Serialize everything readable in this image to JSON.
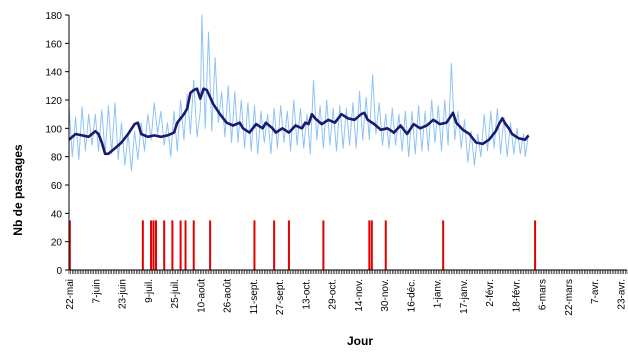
{
  "chart_data": {
    "type": "line",
    "xlabel": "Jour",
    "ylabel": "Nb de passages",
    "ylim": [
      0,
      180
    ],
    "y_ticks": [
      0,
      20,
      40,
      60,
      80,
      100,
      120,
      140,
      160,
      180
    ],
    "grid": false,
    "legend": "none",
    "x_tick_labels": [
      "22-mai",
      "7-juin",
      "23-juin",
      "9-juil.",
      "25-juil.",
      "10-août",
      "26-août",
      "11-sept.",
      "27-sept.",
      "13-oct.",
      "29-oct.",
      "14-nov.",
      "30-nov.",
      "16-déc.",
      "1-janv.",
      "17-janv.",
      "2-févr.",
      "18-févr.",
      "6-mars",
      "22-mars",
      "7-avr.",
      "23-avr."
    ],
    "colors": {
      "daily": "#8fc3f5",
      "smoothed": "#1a1a6e",
      "events": "#e00000"
    },
    "series": [
      {
        "role": "daily",
        "points": [
          [
            0,
            116
          ],
          [
            2,
            80
          ],
          [
            4,
            108
          ],
          [
            6,
            78
          ],
          [
            8,
            115
          ],
          [
            10,
            84
          ],
          [
            12,
            110
          ],
          [
            14,
            88
          ],
          [
            16,
            110
          ],
          [
            18,
            84
          ],
          [
            20,
            113
          ],
          [
            22,
            82
          ],
          [
            24,
            116
          ],
          [
            26,
            82
          ],
          [
            28,
            118
          ],
          [
            30,
            78
          ],
          [
            32,
            104
          ],
          [
            34,
            74
          ],
          [
            36,
            96
          ],
          [
            38,
            70
          ],
          [
            40,
            98
          ],
          [
            42,
            78
          ],
          [
            44,
            104
          ],
          [
            46,
            84
          ],
          [
            48,
            110
          ],
          [
            50,
            92
          ],
          [
            52,
            118
          ],
          [
            54,
            96
          ],
          [
            56,
            112
          ],
          [
            58,
            88
          ],
          [
            60,
            104
          ],
          [
            62,
            80
          ],
          [
            64,
            112
          ],
          [
            66,
            84
          ],
          [
            68,
            120
          ],
          [
            70,
            92
          ],
          [
            72,
            124
          ],
          [
            74,
            96
          ],
          [
            76,
            134
          ],
          [
            78,
            94
          ],
          [
            80,
            112
          ],
          [
            81,
            180
          ],
          [
            83,
            100
          ],
          [
            85,
            168
          ],
          [
            87,
            98
          ],
          [
            89,
            150
          ],
          [
            91,
            104
          ],
          [
            93,
            126
          ],
          [
            95,
            94
          ],
          [
            97,
            130
          ],
          [
            99,
            90
          ],
          [
            101,
            126
          ],
          [
            103,
            90
          ],
          [
            105,
            120
          ],
          [
            107,
            86
          ],
          [
            109,
            118
          ],
          [
            111,
            84
          ],
          [
            113,
            116
          ],
          [
            115,
            82
          ],
          [
            117,
            112
          ],
          [
            119,
            90
          ],
          [
            121,
            110
          ],
          [
            123,
            82
          ],
          [
            125,
            114
          ],
          [
            127,
            86
          ],
          [
            129,
            116
          ],
          [
            131,
            90
          ],
          [
            133,
            112
          ],
          [
            135,
            84
          ],
          [
            137,
            120
          ],
          [
            139,
            88
          ],
          [
            141,
            114
          ],
          [
            143,
            86
          ],
          [
            145,
            110
          ],
          [
            147,
            82
          ],
          [
            149,
            134
          ],
          [
            151,
            92
          ],
          [
            153,
            116
          ],
          [
            155,
            86
          ],
          [
            157,
            120
          ],
          [
            159,
            88
          ],
          [
            161,
            114
          ],
          [
            163,
            84
          ],
          [
            165,
            116
          ],
          [
            167,
            86
          ],
          [
            169,
            114
          ],
          [
            171,
            88
          ],
          [
            173,
            118
          ],
          [
            175,
            86
          ],
          [
            177,
            126
          ],
          [
            179,
            92
          ],
          [
            181,
            122
          ],
          [
            183,
            92
          ],
          [
            185,
            138
          ],
          [
            187,
            96
          ],
          [
            189,
            118
          ],
          [
            191,
            88
          ],
          [
            193,
            110
          ],
          [
            195,
            86
          ],
          [
            197,
            114
          ],
          [
            199,
            88
          ],
          [
            201,
            110
          ],
          [
            203,
            84
          ],
          [
            205,
            112
          ],
          [
            207,
            80
          ],
          [
            209,
            112
          ],
          [
            211,
            82
          ],
          [
            213,
            116
          ],
          [
            215,
            84
          ],
          [
            217,
            112
          ],
          [
            219,
            84
          ],
          [
            221,
            120
          ],
          [
            223,
            90
          ],
          [
            225,
            116
          ],
          [
            227,
            84
          ],
          [
            229,
            120
          ],
          [
            231,
            88
          ],
          [
            233,
            146
          ],
          [
            235,
            92
          ],
          [
            237,
            112
          ],
          [
            239,
            86
          ],
          [
            241,
            106
          ],
          [
            243,
            76
          ],
          [
            245,
            98
          ],
          [
            247,
            74
          ],
          [
            249,
            96
          ],
          [
            251,
            80
          ],
          [
            253,
            110
          ],
          [
            255,
            84
          ],
          [
            257,
            112
          ],
          [
            259,
            86
          ],
          [
            261,
            114
          ],
          [
            263,
            82
          ],
          [
            265,
            108
          ],
          [
            267,
            80
          ],
          [
            269,
            104
          ],
          [
            271,
            82
          ],
          [
            273,
            100
          ],
          [
            275,
            82
          ],
          [
            277,
            96
          ],
          [
            278,
            80
          ],
          [
            280,
            96
          ]
        ]
      },
      {
        "role": "smoothed",
        "points": [
          [
            0,
            92
          ],
          [
            4,
            96
          ],
          [
            8,
            95
          ],
          [
            12,
            94
          ],
          [
            16,
            98
          ],
          [
            18,
            96
          ],
          [
            20,
            90
          ],
          [
            22,
            82
          ],
          [
            24,
            82
          ],
          [
            28,
            86
          ],
          [
            32,
            90
          ],
          [
            36,
            96
          ],
          [
            40,
            103
          ],
          [
            42,
            104
          ],
          [
            44,
            96
          ],
          [
            48,
            94
          ],
          [
            52,
            95
          ],
          [
            56,
            94
          ],
          [
            60,
            95
          ],
          [
            64,
            97
          ],
          [
            66,
            104
          ],
          [
            70,
            110
          ],
          [
            72,
            114
          ],
          [
            74,
            125
          ],
          [
            76,
            127
          ],
          [
            78,
            128
          ],
          [
            80,
            121
          ],
          [
            82,
            128
          ],
          [
            84,
            127
          ],
          [
            86,
            122
          ],
          [
            88,
            117
          ],
          [
            92,
            110
          ],
          [
            96,
            104
          ],
          [
            100,
            102
          ],
          [
            104,
            104
          ],
          [
            106,
            100
          ],
          [
            110,
            97
          ],
          [
            114,
            103
          ],
          [
            118,
            100
          ],
          [
            120,
            104
          ],
          [
            124,
            100
          ],
          [
            126,
            97
          ],
          [
            130,
            100
          ],
          [
            134,
            97
          ],
          [
            138,
            102
          ],
          [
            142,
            100
          ],
          [
            144,
            104
          ],
          [
            146,
            103
          ],
          [
            148,
            110
          ],
          [
            150,
            107
          ],
          [
            154,
            103
          ],
          [
            158,
            106
          ],
          [
            162,
            104
          ],
          [
            166,
            110
          ],
          [
            170,
            107
          ],
          [
            174,
            106
          ],
          [
            178,
            110
          ],
          [
            180,
            111
          ],
          [
            182,
            106
          ],
          [
            186,
            103
          ],
          [
            190,
            99
          ],
          [
            194,
            100
          ],
          [
            198,
            97
          ],
          [
            202,
            102
          ],
          [
            206,
            96
          ],
          [
            210,
            103
          ],
          [
            214,
            100
          ],
          [
            218,
            102
          ],
          [
            222,
            106
          ],
          [
            226,
            103
          ],
          [
            230,
            104
          ],
          [
            234,
            111
          ],
          [
            236,
            104
          ],
          [
            240,
            99
          ],
          [
            244,
            96
          ],
          [
            248,
            90
          ],
          [
            252,
            89
          ],
          [
            256,
            92
          ],
          [
            260,
            98
          ],
          [
            262,
            103
          ],
          [
            264,
            107
          ],
          [
            266,
            103
          ],
          [
            268,
            100
          ],
          [
            270,
            96
          ],
          [
            274,
            93
          ],
          [
            278,
            92
          ],
          [
            280,
            95
          ]
        ]
      }
    ],
    "events": [
      {
        "day": 0.5,
        "value": 35
      },
      {
        "day": 45,
        "value": 35
      },
      {
        "day": 50,
        "value": 35
      },
      {
        "day": 51.5,
        "value": 35
      },
      {
        "day": 53,
        "value": 35
      },
      {
        "day": 58,
        "value": 35
      },
      {
        "day": 63,
        "value": 35
      },
      {
        "day": 68,
        "value": 35
      },
      {
        "day": 71,
        "value": 35
      },
      {
        "day": 76,
        "value": 35
      },
      {
        "day": 86,
        "value": 35
      },
      {
        "day": 113,
        "value": 35
      },
      {
        "day": 125,
        "value": 35
      },
      {
        "day": 134,
        "value": 35
      },
      {
        "day": 155,
        "value": 35
      },
      {
        "day": 183,
        "value": 35
      },
      {
        "day": 184.5,
        "value": 35
      },
      {
        "day": 193,
        "value": 35
      },
      {
        "day": 228,
        "value": 35
      },
      {
        "day": 284,
        "value": 35
      }
    ]
  }
}
